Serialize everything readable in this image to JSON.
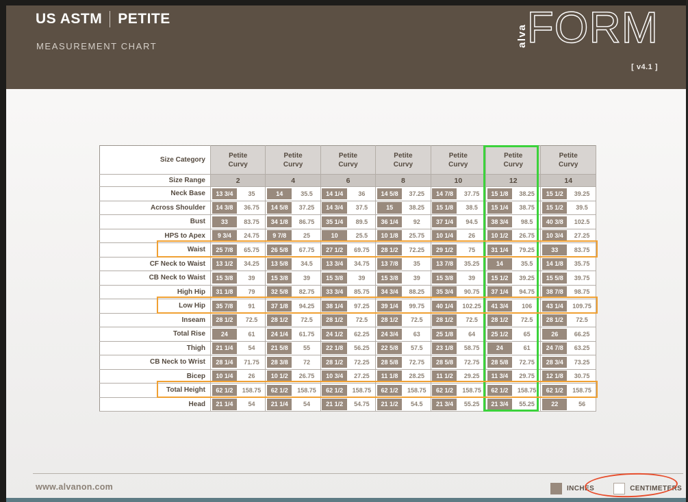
{
  "window": {
    "version": "[ v4.1 ]"
  },
  "header": {
    "title_primary": "US ASTM",
    "title_secondary": "PETITE",
    "subtitle": "MEASUREMENT CHART",
    "logo_alva": "alva",
    "logo_form": "FORM"
  },
  "table": {
    "size_category_label": "Size Category",
    "size_range_label": "Size Range",
    "category_name": "Petite\nCurvy",
    "sizes": [
      "2",
      "4",
      "6",
      "8",
      "10",
      "12",
      "14"
    ],
    "highlighted_size": "12",
    "highlighted_size_index": 5,
    "units": [
      "inches",
      "centimeters"
    ],
    "rows": [
      {
        "label": "Neck Base",
        "highlight": false,
        "values": [
          [
            "13 3/4",
            "35"
          ],
          [
            "14",
            "35.5"
          ],
          [
            "14 1/4",
            "36"
          ],
          [
            "14 5/8",
            "37.25"
          ],
          [
            "14 7/8",
            "37.75"
          ],
          [
            "15 1/8",
            "38.25"
          ],
          [
            "15 1/2",
            "39.25"
          ]
        ]
      },
      {
        "label": "Across Shoulder",
        "highlight": false,
        "values": [
          [
            "14 3/8",
            "36.75"
          ],
          [
            "14 5/8",
            "37.25"
          ],
          [
            "14 3/4",
            "37.5"
          ],
          [
            "15",
            "38.25"
          ],
          [
            "15 1/8",
            "38.5"
          ],
          [
            "15 1/4",
            "38.75"
          ],
          [
            "15 1/2",
            "39.5"
          ]
        ]
      },
      {
        "label": "Bust",
        "highlight": false,
        "values": [
          [
            "33",
            "83.75"
          ],
          [
            "34 1/8",
            "86.75"
          ],
          [
            "35 1/4",
            "89.5"
          ],
          [
            "36 1/4",
            "92"
          ],
          [
            "37 1/4",
            "94.5"
          ],
          [
            "38 3/4",
            "98.5"
          ],
          [
            "40 3/8",
            "102.5"
          ]
        ]
      },
      {
        "label": "HPS to Apex",
        "highlight": false,
        "values": [
          [
            "9 3/4",
            "24.75"
          ],
          [
            "9 7/8",
            "25"
          ],
          [
            "10",
            "25.5"
          ],
          [
            "10 1/8",
            "25.75"
          ],
          [
            "10 1/4",
            "26"
          ],
          [
            "10 1/2",
            "26.75"
          ],
          [
            "10 3/4",
            "27.25"
          ]
        ]
      },
      {
        "label": "Waist",
        "highlight": true,
        "values": [
          [
            "25 7/8",
            "65.75"
          ],
          [
            "26 5/8",
            "67.75"
          ],
          [
            "27 1/2",
            "69.75"
          ],
          [
            "28 1/2",
            "72.25"
          ],
          [
            "29 1/2",
            "75"
          ],
          [
            "31 1/4",
            "79.25"
          ],
          [
            "33",
            "83.75"
          ]
        ]
      },
      {
        "label": "CF Neck to Waist",
        "highlight": false,
        "values": [
          [
            "13 1/2",
            "34.25"
          ],
          [
            "13 5/8",
            "34.5"
          ],
          [
            "13 3/4",
            "34.75"
          ],
          [
            "13 7/8",
            "35"
          ],
          [
            "13 7/8",
            "35.25"
          ],
          [
            "14",
            "35.5"
          ],
          [
            "14 1/8",
            "35.75"
          ]
        ]
      },
      {
        "label": "CB Neck to Waist",
        "highlight": false,
        "values": [
          [
            "15 3/8",
            "39"
          ],
          [
            "15 3/8",
            "39"
          ],
          [
            "15 3/8",
            "39"
          ],
          [
            "15 3/8",
            "39"
          ],
          [
            "15 3/8",
            "39"
          ],
          [
            "15 1/2",
            "39.25"
          ],
          [
            "15 5/8",
            "39.75"
          ]
        ]
      },
      {
        "label": "High Hip",
        "highlight": false,
        "values": [
          [
            "31 1/8",
            "79"
          ],
          [
            "32 5/8",
            "82.75"
          ],
          [
            "33 3/4",
            "85.75"
          ],
          [
            "34 3/4",
            "88.25"
          ],
          [
            "35 3/4",
            "90.75"
          ],
          [
            "37 1/4",
            "94.75"
          ],
          [
            "38 7/8",
            "98.75"
          ]
        ]
      },
      {
        "label": "Low Hip",
        "highlight": true,
        "values": [
          [
            "35 7/8",
            "91"
          ],
          [
            "37 1/8",
            "94.25"
          ],
          [
            "38 1/4",
            "97.25"
          ],
          [
            "39 1/4",
            "99.75"
          ],
          [
            "40 1/4",
            "102.25"
          ],
          [
            "41 3/4",
            "106"
          ],
          [
            "43 1/4",
            "109.75"
          ]
        ]
      },
      {
        "label": "Inseam",
        "highlight": false,
        "values": [
          [
            "28 1/2",
            "72.5"
          ],
          [
            "28 1/2",
            "72.5"
          ],
          [
            "28 1/2",
            "72.5"
          ],
          [
            "28 1/2",
            "72.5"
          ],
          [
            "28 1/2",
            "72.5"
          ],
          [
            "28 1/2",
            "72.5"
          ],
          [
            "28 1/2",
            "72.5"
          ]
        ]
      },
      {
        "label": "Total Rise",
        "highlight": false,
        "values": [
          [
            "24",
            "61"
          ],
          [
            "24 1/4",
            "61.75"
          ],
          [
            "24 1/2",
            "62.25"
          ],
          [
            "24 3/4",
            "63"
          ],
          [
            "25 1/8",
            "64"
          ],
          [
            "25 1/2",
            "65"
          ],
          [
            "26",
            "66.25"
          ]
        ]
      },
      {
        "label": "Thigh",
        "highlight": false,
        "values": [
          [
            "21 1/4",
            "54"
          ],
          [
            "21 5/8",
            "55"
          ],
          [
            "22 1/8",
            "56.25"
          ],
          [
            "22 5/8",
            "57.5"
          ],
          [
            "23 1/8",
            "58.75"
          ],
          [
            "24",
            "61"
          ],
          [
            "24 7/8",
            "63.25"
          ]
        ]
      },
      {
        "label": "CB Neck to Wrist",
        "highlight": false,
        "values": [
          [
            "28 1/4",
            "71.75"
          ],
          [
            "28 3/8",
            "72"
          ],
          [
            "28 1/2",
            "72.25"
          ],
          [
            "28 5/8",
            "72.75"
          ],
          [
            "28 5/8",
            "72.75"
          ],
          [
            "28 5/8",
            "72.75"
          ],
          [
            "28 3/4",
            "73.25"
          ]
        ]
      },
      {
        "label": "Bicep",
        "highlight": false,
        "values": [
          [
            "10 1/4",
            "26"
          ],
          [
            "10 1/2",
            "26.75"
          ],
          [
            "10 3/4",
            "27.25"
          ],
          [
            "11 1/8",
            "28.25"
          ],
          [
            "11 1/2",
            "29.25"
          ],
          [
            "11 3/4",
            "29.75"
          ],
          [
            "12 1/8",
            "30.75"
          ]
        ]
      },
      {
        "label": "Total Height",
        "highlight": true,
        "values": [
          [
            "62 1/2",
            "158.75"
          ],
          [
            "62 1/2",
            "158.75"
          ],
          [
            "62 1/2",
            "158.75"
          ],
          [
            "62 1/2",
            "158.75"
          ],
          [
            "62 1/2",
            "158.75"
          ],
          [
            "62 1/2",
            "158.75"
          ],
          [
            "62 1/2",
            "158.75"
          ]
        ]
      },
      {
        "label": "Head",
        "highlight": false,
        "values": [
          [
            "21 1/4",
            "54"
          ],
          [
            "21 1/4",
            "54"
          ],
          [
            "21 1/2",
            "54.75"
          ],
          [
            "21 1/2",
            "54.5"
          ],
          [
            "21 3/4",
            "55.25"
          ],
          [
            "21 3/4",
            "55.25"
          ],
          [
            "22",
            "56"
          ]
        ]
      }
    ]
  },
  "footer": {
    "url": "www.alvanon.com",
    "legend": {
      "inches_label": "INCHES",
      "centimeters_label": "CENTIMETERS"
    }
  },
  "colors": {
    "header_brown": "#5c5044",
    "inch_cell": "#998a7d",
    "category_cell": "#d8d4d1",
    "size_range_cell": "#cac5c1",
    "column_highlight_green": "#3bd23b",
    "row_highlight_orange": "#f0a032",
    "annotation_red": "#e74e2d",
    "bottom_strip_teal": "#5d7b84"
  }
}
